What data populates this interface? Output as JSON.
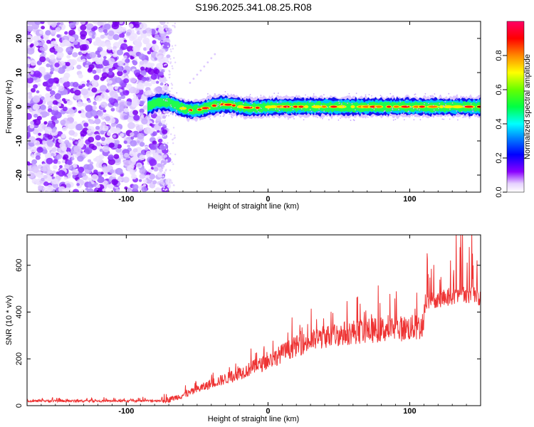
{
  "title": "S196.2025.341.08.25.R08",
  "chart_data": [
    {
      "type": "heatmap",
      "name": "spectrogram",
      "xlabel": "Height of straight line (km)",
      "ylabel": "Frequency (Hz)",
      "xlim": [
        -170,
        150
      ],
      "ylim": [
        -25,
        25
      ],
      "x_ticks": [
        "-100",
        "0",
        "100"
      ],
      "y_ticks": [
        "20",
        "10",
        "0",
        "-10",
        "-20"
      ],
      "noise_region_x": [
        -170,
        -75
      ],
      "signal_region_x": [
        -85,
        150
      ],
      "signal_frequency_hz": 0,
      "signal_bandwidth_hz": 3,
      "colorbar": {
        "label": "Normalized spectral amplitude",
        "range": [
          0,
          1
        ],
        "ticks": [
          "0.0",
          "0.2",
          "0.4",
          "0.6",
          "0.8"
        ],
        "colors": [
          "#ffffff",
          "#e0c8ff",
          "#8800ff",
          "#0000ff",
          "#00ffff",
          "#00ff00",
          "#ffff00",
          "#ff8800",
          "#ff0000",
          "#ff0066"
        ]
      }
    },
    {
      "type": "line",
      "name": "snr",
      "xlabel": "Height of straight line (km)",
      "ylabel": "SNR (10 * v/v)",
      "xlim": [
        -170,
        150
      ],
      "ylim": [
        0,
        730
      ],
      "x_ticks": [
        "-100",
        "0",
        "100"
      ],
      "y_ticks": [
        "0",
        "200",
        "400",
        "600"
      ],
      "color": "#ee3333",
      "series": [
        {
          "name": "SNR",
          "x": [
            -170,
            -150,
            -130,
            -110,
            -90,
            -75,
            -70,
            -65,
            -60,
            -55,
            -50,
            -45,
            -40,
            -35,
            -30,
            -25,
            -20,
            -15,
            -10,
            -5,
            0,
            5,
            10,
            15,
            20,
            25,
            30,
            35,
            40,
            45,
            50,
            55,
            60,
            65,
            70,
            75,
            80,
            85,
            90,
            95,
            100,
            105,
            109,
            111,
            115,
            120,
            125,
            130,
            135,
            140,
            145,
            150
          ],
          "values": [
            20,
            20,
            20,
            20,
            20,
            22,
            25,
            35,
            45,
            55,
            70,
            80,
            95,
            105,
            115,
            125,
            140,
            150,
            165,
            175,
            190,
            205,
            225,
            240,
            255,
            265,
            275,
            285,
            295,
            300,
            305,
            310,
            315,
            318,
            320,
            322,
            325,
            327,
            328,
            330,
            332,
            335,
            335,
            445,
            450,
            455,
            460,
            465,
            470,
            475,
            480,
            455
          ]
        }
      ]
    }
  ]
}
